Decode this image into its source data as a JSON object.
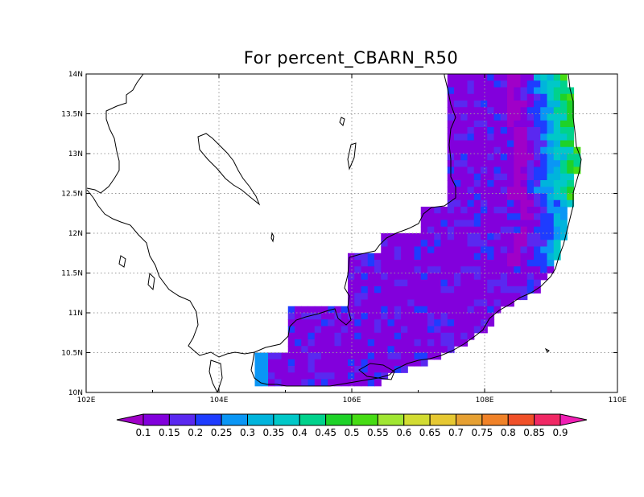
{
  "map": {
    "title": "For percent_CBARN_R50",
    "lon_range": [
      102,
      110
    ],
    "lat_range": [
      10,
      14
    ],
    "x_tick_labels": [
      "102E",
      "104E",
      "106E",
      "108E",
      "110E"
    ],
    "x_tick_values": [
      102,
      104,
      106,
      108,
      110
    ],
    "y_tick_labels": [
      "10N",
      "10.5N",
      "11N",
      "11.5N",
      "12N",
      "12.5N",
      "13N",
      "13.5N",
      "14N"
    ],
    "y_tick_values": [
      10,
      10.5,
      11,
      11.5,
      12,
      12.5,
      13,
      13.5,
      14
    ],
    "gridlines": true,
    "colorbar": {
      "placement": "bottom",
      "labels": [
        "0.1",
        "0.15",
        "0.2",
        "0.25",
        "0.3",
        "0.35",
        "0.4",
        "0.45",
        "0.5",
        "0.55",
        "0.6",
        "0.65",
        "0.7",
        "0.75",
        "0.8",
        "0.85",
        "0.9"
      ],
      "colors": [
        "#a000c8",
        "#8200dc",
        "#5a28f0",
        "#1e3cff",
        "#0a96f5",
        "#00b4dc",
        "#00c8c8",
        "#00d28c",
        "#1ed228",
        "#46dc14",
        "#a0e632",
        "#d2dc32",
        "#e6c832",
        "#e6a032",
        "#f08228",
        "#f05028",
        "#f02864",
        "#f01eb4"
      ]
    }
  }
}
